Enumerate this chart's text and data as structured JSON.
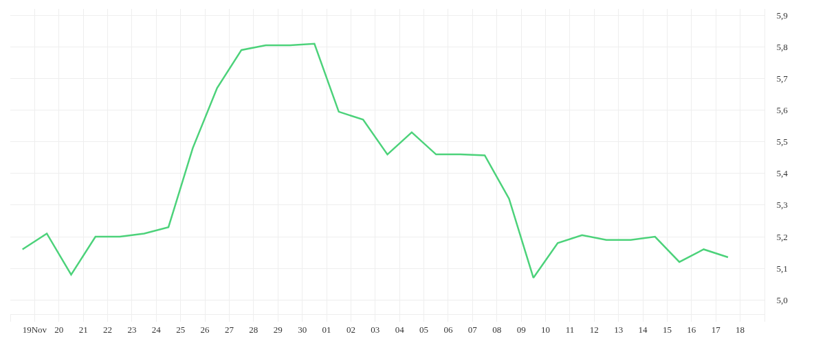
{
  "chart_data": {
    "type": "line",
    "x": [
      "--11-18T12:00",
      "--11-19T12:00",
      "--11-20T12:00",
      "--11-21T12:00",
      "--11-22T12:00",
      "--11-23T12:00",
      "--11-24T12:00",
      "--11-25T12:00",
      "--11-26T12:00",
      "--11-27T12:00",
      "--11-28T12:00",
      "--11-29T12:00",
      "--11-30T12:00",
      "--12-01T12:00",
      "--12-02T12:00",
      "--12-03T12:00",
      "--12-04T12:00",
      "--12-05T12:00",
      "--12-06T12:00",
      "--12-07T12:00",
      "--12-08T12:00",
      "--12-09T12:00",
      "--12-10T12:00",
      "--12-11T12:00",
      "--12-12T12:00",
      "--12-13T12:00",
      "--12-14T12:00",
      "--12-15T12:00",
      "--12-16T12:00",
      "--12-17T12:00"
    ],
    "series": [
      {
        "color": "#4cd27a",
        "values": [
          5.16,
          5.21,
          5.08,
          5.2,
          5.2,
          5.21,
          5.23,
          5.48,
          5.67,
          5.79,
          5.805,
          5.805,
          5.81,
          5.595,
          5.57,
          5.46,
          5.53,
          5.46,
          5.46,
          5.457,
          5.32,
          5.07,
          5.18,
          5.205,
          5.19,
          5.19,
          5.2,
          5.12,
          5.16,
          5.135
        ]
      }
    ],
    "xlim": [
      "--11-18",
      "--12-19"
    ],
    "xticks": [
      {
        "value": "--11-18",
        "label": null
      },
      {
        "value": "--11-19",
        "label": "19Nov"
      },
      {
        "value": "--11-20",
        "label": "20"
      },
      {
        "value": "--11-21",
        "label": "21"
      },
      {
        "value": "--11-22",
        "label": "22"
      },
      {
        "value": "--11-23",
        "label": "23"
      },
      {
        "value": "--11-24",
        "label": "24"
      },
      {
        "value": "--11-25",
        "label": "25"
      },
      {
        "value": "--11-26",
        "label": "26"
      },
      {
        "value": "--11-27",
        "label": "27"
      },
      {
        "value": "--11-28",
        "label": "28"
      },
      {
        "value": "--11-29",
        "label": "29"
      },
      {
        "value": "--11-30",
        "label": "30"
      },
      {
        "value": "--12-01",
        "label": "01"
      },
      {
        "value": "--12-02",
        "label": "02"
      },
      {
        "value": "--12-03",
        "label": "03"
      },
      {
        "value": "--12-04",
        "label": "04"
      },
      {
        "value": "--12-05",
        "label": "05"
      },
      {
        "value": "--12-06",
        "label": "06"
      },
      {
        "value": "--12-07",
        "label": "07"
      },
      {
        "value": "--12-08",
        "label": "08"
      },
      {
        "value": "--12-09",
        "label": "09"
      },
      {
        "value": "--12-10",
        "label": "10"
      },
      {
        "value": "--12-11",
        "label": "11"
      },
      {
        "value": "--12-12",
        "label": "12"
      },
      {
        "value": "--12-13",
        "label": "13"
      },
      {
        "value": "--12-14",
        "label": "14"
      },
      {
        "value": "--12-15",
        "label": "15"
      },
      {
        "value": "--12-16",
        "label": "16"
      },
      {
        "value": "--12-17",
        "label": "17"
      },
      {
        "value": "--12-18",
        "label": "18"
      },
      {
        "value": "--12-19",
        "label": null
      }
    ],
    "ylim": [
      4.955,
      5.92
    ],
    "yticks": [
      {
        "value": 5,
        "label": "5,0"
      },
      {
        "value": 5.1,
        "label": "5,1"
      },
      {
        "value": 5.2,
        "label": "5,2"
      },
      {
        "value": 5.3,
        "label": "5,3"
      },
      {
        "value": 5.4,
        "label": "5,4"
      },
      {
        "value": 5.5,
        "label": "5,5"
      },
      {
        "value": 5.6,
        "label": "5,6"
      },
      {
        "value": 5.7,
        "label": "5,7"
      },
      {
        "value": 5.8,
        "label": "5,8"
      },
      {
        "value": 5.9,
        "label": "5,9"
      }
    ],
    "grid": true
  }
}
